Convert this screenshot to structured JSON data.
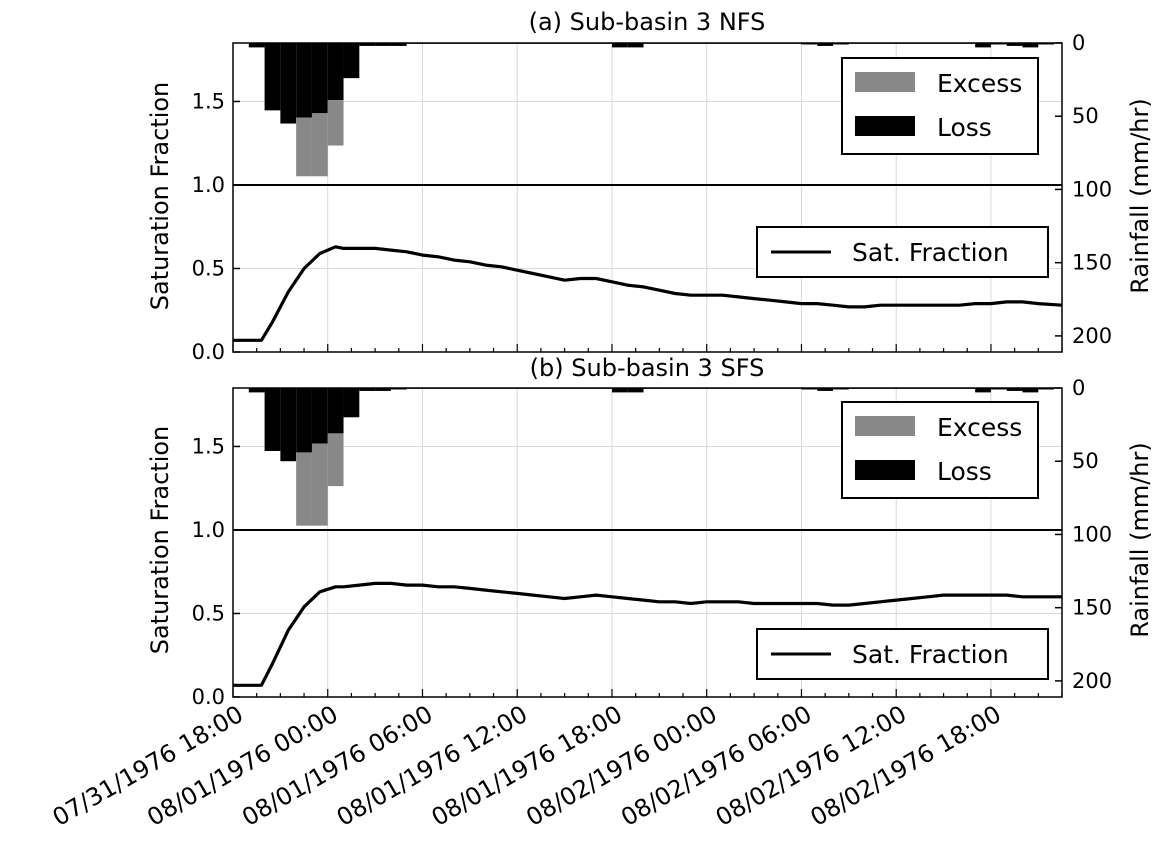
{
  "chart_data": [
    {
      "type": "line",
      "title": "(a) Sub-basin 3 NFS",
      "ylabel": "Saturation Fraction",
      "y2label": "Rainfall (mm/hr)",
      "ylim": [
        0.0,
        1.85
      ],
      "y_ticks": [
        "0.0",
        "0.5",
        "1.0",
        "1.5"
      ],
      "y2_ticks": [
        "0",
        "50",
        "100",
        "150",
        "200"
      ],
      "x_ticks": [
        "07/31/1976 18:00",
        "08/01/1976 00:00",
        "08/01/1976 06:00",
        "08/01/1976 12:00",
        "08/01/1976 18:00",
        "08/02/1976 00:00",
        "08/02/1976 06:00",
        "08/02/1976 12:00",
        "08/02/1976 18:00"
      ],
      "x_range_hours_from_first_tick": [
        0,
        52.5
      ],
      "grid": true,
      "legend_top": [
        {
          "label": "Excess",
          "color": "#888888"
        },
        {
          "label": "Loss",
          "color": "#000000"
        }
      ],
      "legend_bottom": [
        {
          "label": "Sat. Fraction",
          "color": "#000000"
        }
      ],
      "legend_bottom_placement": "center-right",
      "series": [
        {
          "name": "Sat. Fraction",
          "x_hours": [
            0,
            1.8,
            2.5,
            3.5,
            4.5,
            5.5,
            6.5,
            7,
            8,
            9,
            10,
            11,
            12,
            13,
            14,
            15,
            16,
            17,
            18,
            19,
            20,
            21,
            22,
            23,
            24,
            25,
            26,
            27,
            28,
            29,
            30,
            31,
            32,
            33,
            34,
            35,
            36,
            37,
            38,
            39,
            40,
            41,
            42,
            43,
            44,
            45,
            46,
            47,
            48,
            49,
            50,
            51,
            52.5
          ],
          "y": [
            0.07,
            0.07,
            0.18,
            0.36,
            0.5,
            0.59,
            0.63,
            0.62,
            0.62,
            0.62,
            0.61,
            0.6,
            0.58,
            0.57,
            0.55,
            0.54,
            0.52,
            0.51,
            0.49,
            0.47,
            0.45,
            0.43,
            0.44,
            0.44,
            0.42,
            0.4,
            0.39,
            0.37,
            0.35,
            0.34,
            0.34,
            0.34,
            0.33,
            0.32,
            0.31,
            0.3,
            0.29,
            0.29,
            0.28,
            0.27,
            0.27,
            0.28,
            0.28,
            0.28,
            0.28,
            0.28,
            0.28,
            0.29,
            0.29,
            0.3,
            0.3,
            0.29,
            0.28
          ]
        }
      ],
      "rainfall_bars": {
        "bar_width_hours": 1,
        "start_hours": [
          1,
          2,
          3,
          4,
          5,
          6,
          7,
          8,
          9,
          10,
          11,
          12,
          13,
          14,
          15,
          16,
          17,
          18,
          19,
          20,
          21,
          22,
          23,
          24,
          25,
          26,
          27,
          28,
          29,
          30,
          31,
          32,
          33,
          34,
          35,
          36,
          37,
          38,
          39,
          40,
          41,
          42,
          43,
          44,
          45,
          46,
          47,
          48,
          49,
          50,
          51
        ],
        "total_mm_hr": [
          3,
          46,
          55,
          51,
          48,
          39,
          24,
          2,
          2,
          2,
          0.5,
          0.5,
          0.5,
          0.5,
          0.5,
          0.5,
          0.5,
          0.5,
          0.5,
          0.5,
          0.5,
          0.5,
          0.5,
          3,
          3,
          0.5,
          0.5,
          0.5,
          0.5,
          0.5,
          0.5,
          0.5,
          0.5,
          0.5,
          0.5,
          1,
          2,
          1,
          0.5,
          0.5,
          0.5,
          0.5,
          0.5,
          0.5,
          0.5,
          0.5,
          3,
          1,
          2,
          3,
          1
        ],
        "excess_mm_hr": [
          0,
          0,
          0,
          91,
          91,
          70,
          0,
          0,
          0,
          0,
          0,
          0,
          0,
          0,
          0,
          0,
          0,
          0,
          0,
          0,
          0,
          0,
          0,
          0,
          0,
          0,
          0,
          0,
          0,
          0,
          0,
          0,
          0,
          0,
          0,
          0,
          0,
          0,
          0,
          0,
          0,
          0,
          0,
          0,
          0,
          0,
          0,
          0,
          0,
          0,
          0
        ]
      }
    },
    {
      "type": "line",
      "title": "(b) Sub-basin 3 SFS",
      "ylabel": "Saturation Fraction",
      "y2label": "Rainfall (mm/hr)",
      "ylim": [
        0.0,
        1.85
      ],
      "y_ticks": [
        "0.0",
        "0.5",
        "1.0",
        "1.5"
      ],
      "y2_ticks": [
        "0",
        "50",
        "100",
        "150",
        "200"
      ],
      "x_ticks": [
        "07/31/1976 18:00",
        "08/01/1976 00:00",
        "08/01/1976 06:00",
        "08/01/1976 12:00",
        "08/01/1976 18:00",
        "08/02/1976 00:00",
        "08/02/1976 06:00",
        "08/02/1976 12:00",
        "08/02/1976 18:00"
      ],
      "x_range_hours_from_first_tick": [
        0,
        52.5
      ],
      "grid": true,
      "legend_top": [
        {
          "label": "Excess",
          "color": "#888888"
        },
        {
          "label": "Loss",
          "color": "#000000"
        }
      ],
      "legend_bottom": [
        {
          "label": "Sat. Fraction",
          "color": "#000000"
        }
      ],
      "legend_bottom_placement": "lower-right",
      "series": [
        {
          "name": "Sat. Fraction",
          "x_hours": [
            0,
            1.8,
            2.5,
            3.5,
            4.5,
            5.5,
            6.5,
            7,
            8,
            9,
            10,
            11,
            12,
            13,
            14,
            15,
            16,
            17,
            18,
            19,
            20,
            21,
            22,
            23,
            24,
            25,
            26,
            27,
            28,
            29,
            30,
            31,
            32,
            33,
            34,
            35,
            36,
            37,
            38,
            39,
            40,
            41,
            42,
            43,
            44,
            45,
            46,
            47,
            48,
            49,
            50,
            51,
            52.5
          ],
          "y": [
            0.07,
            0.07,
            0.2,
            0.4,
            0.54,
            0.63,
            0.66,
            0.66,
            0.67,
            0.68,
            0.68,
            0.67,
            0.67,
            0.66,
            0.66,
            0.65,
            0.64,
            0.63,
            0.62,
            0.61,
            0.6,
            0.59,
            0.6,
            0.61,
            0.6,
            0.59,
            0.58,
            0.57,
            0.57,
            0.56,
            0.57,
            0.57,
            0.57,
            0.56,
            0.56,
            0.56,
            0.56,
            0.56,
            0.55,
            0.55,
            0.56,
            0.57,
            0.58,
            0.59,
            0.6,
            0.61,
            0.61,
            0.61,
            0.61,
            0.61,
            0.6,
            0.6,
            0.6
          ]
        }
      ],
      "rainfall_bars": {
        "bar_width_hours": 1,
        "start_hours": [
          1,
          2,
          3,
          4,
          5,
          6,
          7,
          8,
          9,
          10,
          11,
          12,
          13,
          14,
          15,
          16,
          17,
          18,
          19,
          20,
          21,
          22,
          23,
          24,
          25,
          26,
          27,
          28,
          29,
          30,
          31,
          32,
          33,
          34,
          35,
          36,
          37,
          38,
          39,
          40,
          41,
          42,
          43,
          44,
          45,
          46,
          47,
          48,
          49,
          50,
          51
        ],
        "total_mm_hr": [
          3,
          43,
          50,
          44,
          38,
          31,
          20,
          2,
          2,
          1,
          0.5,
          0.5,
          0.5,
          0.5,
          0.5,
          0.5,
          0.5,
          0.5,
          0.5,
          0.5,
          0.5,
          0.5,
          0.5,
          3,
          3,
          0.5,
          0.5,
          0.5,
          0.5,
          0.5,
          0.5,
          0.5,
          0.5,
          0.5,
          0.5,
          1,
          2,
          1,
          0.5,
          0.5,
          0.5,
          0.5,
          0.5,
          0.5,
          0.5,
          0.5,
          3,
          1,
          2,
          3,
          1
        ],
        "excess_mm_hr": [
          0,
          0,
          0,
          94,
          94,
          67,
          0,
          0,
          0,
          0,
          0,
          0,
          0,
          0,
          0,
          0,
          0,
          0,
          0,
          0,
          0,
          0,
          0,
          0,
          0,
          0,
          0,
          0,
          0,
          0,
          0,
          0,
          0,
          0,
          0,
          0,
          0,
          0,
          0,
          0,
          0,
          0,
          0,
          0,
          0,
          0,
          0,
          0,
          0,
          0,
          0
        ]
      }
    }
  ]
}
